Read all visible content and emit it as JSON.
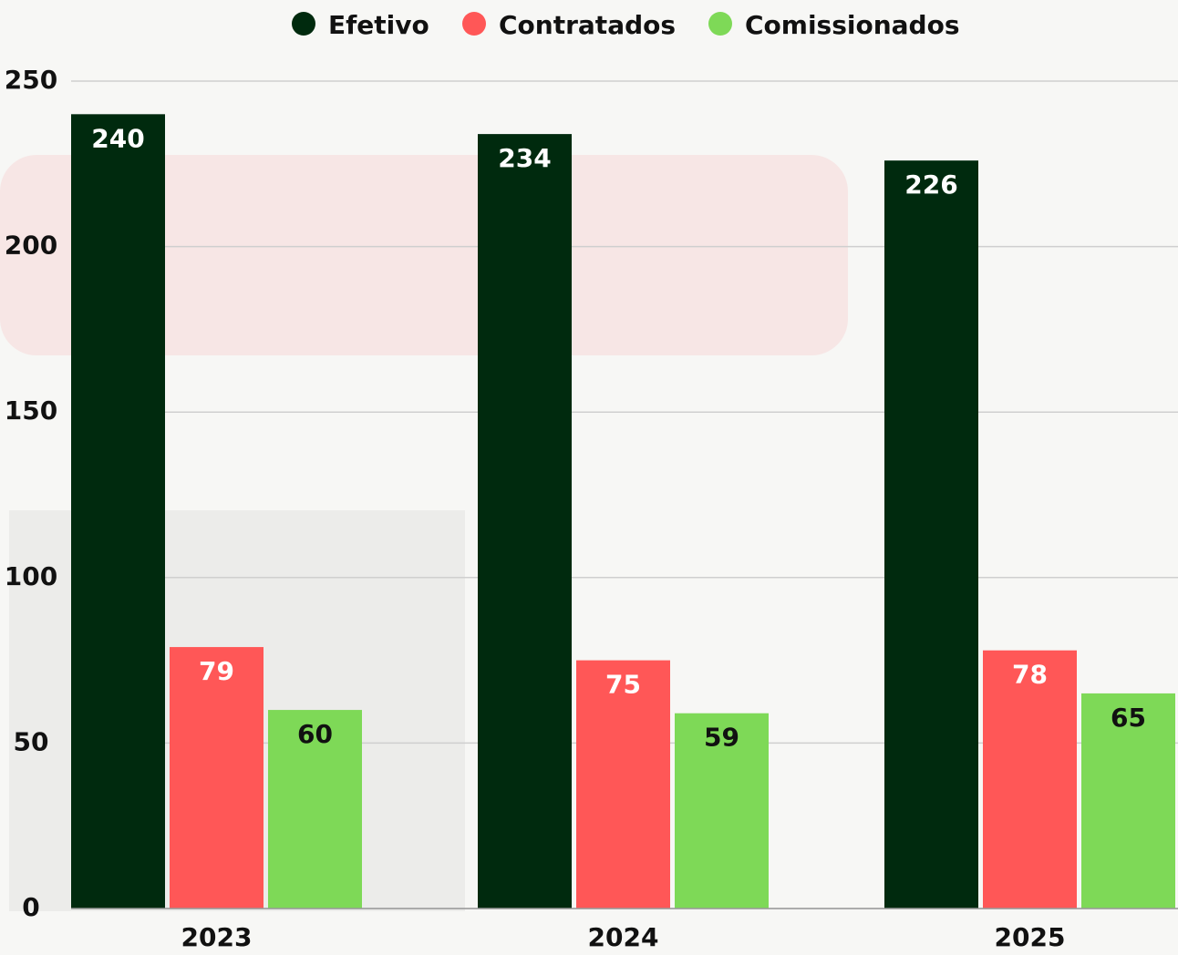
{
  "chart_data": {
    "type": "bar",
    "categories": [
      "2023",
      "2024",
      "2025"
    ],
    "series": [
      {
        "name": "Efetivo",
        "color": "#002a0e",
        "values": [
          240,
          234,
          226
        ]
      },
      {
        "name": "Contratados",
        "color": "#ff5757",
        "values": [
          79,
          75,
          78
        ]
      },
      {
        "name": "Comissionados",
        "color": "#7ed957",
        "values": [
          60,
          59,
          65
        ]
      }
    ],
    "ylim": [
      0,
      250
    ],
    "yticks": [
      0,
      50,
      100,
      150,
      200,
      250
    ],
    "grid": true
  }
}
